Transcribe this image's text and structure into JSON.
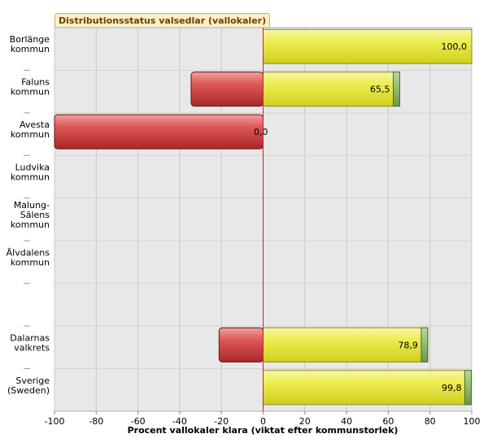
{
  "chart_data": {
    "type": "bar",
    "orientation": "horizontal",
    "title": "Distributionsstatus valsedlar (vallokaler)",
    "xlabel": "Procent vallokaler klara (viktat efter kommunstorlek)",
    "xlim": [
      -100,
      100
    ],
    "xticks": [
      "-100",
      "-80",
      "-60",
      "-40",
      "-20",
      "0",
      "20",
      "40",
      "60",
      "80",
      "100"
    ],
    "grid": true,
    "colors": {
      "positive": "#e8e838",
      "positive_tip": "#8cb860",
      "negative": "#cc3a3a",
      "zero_line": "#d02020",
      "plot_bg": "#e8e8e8"
    },
    "rows": [
      {
        "label": [
          "Borlänge",
          "kommun"
        ],
        "positive": 100.0,
        "negative": 0,
        "value_label": "100,0"
      },
      {
        "label": [
          "Faluns",
          "kommun"
        ],
        "positive": 65.5,
        "negative": -34.5,
        "value_label": "65,5"
      },
      {
        "label": [
          "Avesta",
          "kommun"
        ],
        "positive": 0,
        "negative": -100,
        "value_label": "0,0"
      },
      {
        "label": [
          "Ludvika",
          "kommun"
        ],
        "positive": null,
        "negative": null,
        "value_label": ""
      },
      {
        "label": [
          "Malung-",
          "Sälens",
          "kommun"
        ],
        "positive": null,
        "negative": null,
        "value_label": ""
      },
      {
        "label": [
          "Älvdalens",
          "kommun"
        ],
        "positive": null,
        "negative": null,
        "value_label": ""
      },
      {
        "label": [],
        "positive": null,
        "negative": null,
        "value_label": ""
      },
      {
        "label": [
          "Dalarnas",
          "valkrets"
        ],
        "positive": 78.9,
        "negative": -21.1,
        "value_label": "78,9"
      },
      {
        "label": [
          "Sverige",
          "(Sweden)"
        ],
        "positive": 99.8,
        "negative": 0,
        "value_label": "99,8"
      }
    ]
  }
}
